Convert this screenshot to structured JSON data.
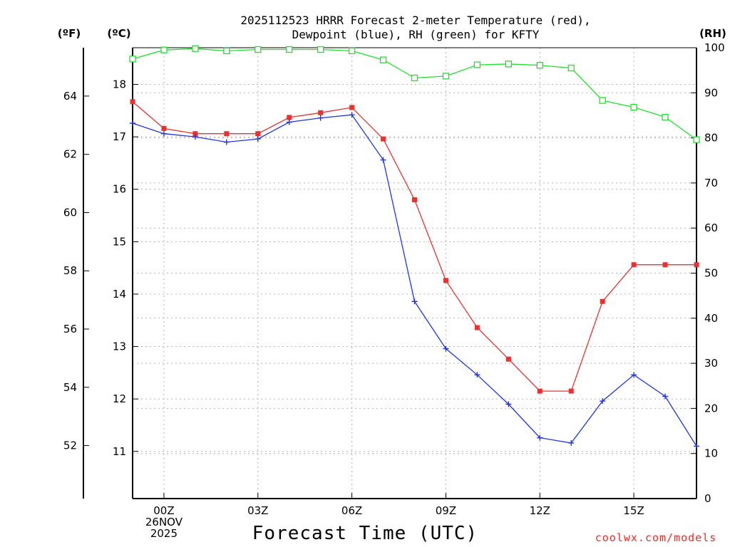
{
  "chart_data": {
    "type": "line",
    "title_line1": "2025112523 HRRR Forecast 2-meter Temperature (red),",
    "title_line2": "Dewpoint (blue), RH (green) for KFTY",
    "xlabel": "Forecast Time (UTC)",
    "credit": "coolwx.com/models",
    "x_start_label": [
      "00Z",
      "26NOV",
      "2025"
    ],
    "x_ticks": [
      {
        "hour": 0,
        "label": "00Z"
      },
      {
        "hour": 3,
        "label": "03Z"
      },
      {
        "hour": 6,
        "label": "06Z"
      },
      {
        "hour": 9,
        "label": "09Z"
      },
      {
        "hour": 12,
        "label": "12Z"
      },
      {
        "hour": 15,
        "label": "15Z"
      }
    ],
    "xlim": [
      -1,
      17
    ],
    "units": {
      "fahrenheit": "(ºF)",
      "celsius": "(ºC)",
      "rh": "(RH)"
    },
    "celsius_axis": {
      "range": [
        10.1,
        18.7
      ],
      "ticks": [
        11,
        12,
        13,
        14,
        15,
        16,
        17,
        18
      ]
    },
    "fahrenheit_axis": {
      "ticks": [
        52,
        54,
        56,
        58,
        60,
        62,
        64
      ]
    },
    "rh_axis": {
      "range": [
        0,
        100
      ],
      "ticks": [
        0,
        10,
        20,
        30,
        40,
        50,
        60,
        70,
        80,
        90,
        100
      ]
    },
    "hours": [
      -1,
      0,
      1,
      2,
      3,
      4,
      5,
      6,
      7,
      8,
      9,
      10,
      11,
      12,
      13,
      14,
      15,
      16,
      17
    ],
    "series": [
      {
        "name": "Temperature",
        "unit": "C",
        "color": "#e83232",
        "values": [
          17.67,
          17.16,
          17.06,
          17.06,
          17.06,
          17.37,
          17.46,
          17.56,
          16.96,
          15.8,
          14.26,
          13.36,
          12.76,
          12.15,
          12.15,
          13.86,
          14.56,
          14.56,
          14.56
        ]
      },
      {
        "name": "Dewpoint",
        "unit": "C",
        "color": "#2236e6",
        "values": [
          17.26,
          17.06,
          17.0,
          16.9,
          16.96,
          17.28,
          17.36,
          17.42,
          16.56,
          13.86,
          12.96,
          12.46,
          11.9,
          11.26,
          11.16,
          11.96,
          12.46,
          12.05,
          11.1
        ]
      },
      {
        "name": "RH",
        "unit": "%",
        "color": "#22e02e",
        "values": [
          97.5,
          99.5,
          99.8,
          99.3,
          99.6,
          99.6,
          99.6,
          99.3,
          97.3,
          93.3,
          93.7,
          96.2,
          96.4,
          96.1,
          95.5,
          88.3,
          86.8,
          84.6,
          79.6
        ]
      }
    ]
  }
}
